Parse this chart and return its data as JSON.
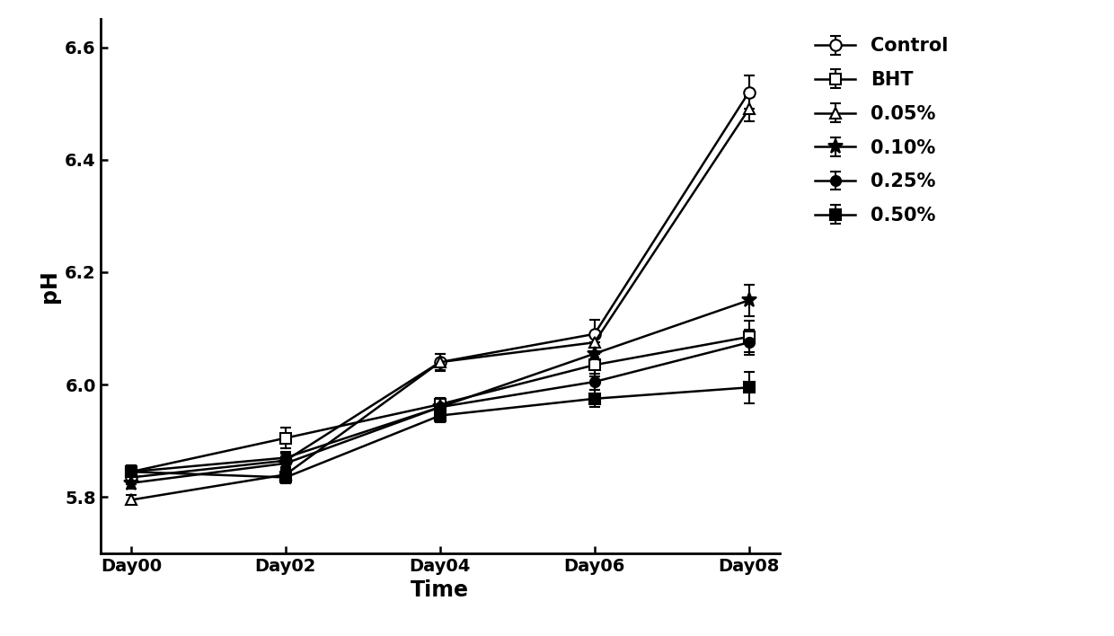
{
  "x_labels": [
    "Day00",
    "Day02",
    "Day04",
    "Day06",
    "Day08"
  ],
  "x_values": [
    0,
    2,
    4,
    6,
    8
  ],
  "series": [
    {
      "label": "Control",
      "y": [
        5.835,
        5.865,
        6.04,
        6.09,
        6.52
      ],
      "yerr": [
        0.012,
        0.012,
        0.015,
        0.025,
        0.03
      ],
      "marker": "o",
      "markerfacecolor": "white",
      "markeredgecolor": "black",
      "linestyle": "-",
      "color": "black",
      "markersize": 9
    },
    {
      "label": "BHT",
      "y": [
        5.845,
        5.905,
        5.965,
        6.035,
        6.085
      ],
      "yerr": [
        0.012,
        0.018,
        0.012,
        0.02,
        0.028
      ],
      "marker": "s",
      "markerfacecolor": "white",
      "markeredgecolor": "black",
      "linestyle": "-",
      "color": "black",
      "markersize": 8
    },
    {
      "label": "0.05%",
      "y": [
        5.795,
        5.84,
        6.04,
        6.075,
        6.49
      ],
      "yerr": [
        0.008,
        0.01,
        0.014,
        0.015,
        0.022
      ],
      "marker": "^",
      "markerfacecolor": "white",
      "markeredgecolor": "black",
      "linestyle": "-",
      "color": "black",
      "markersize": 9
    },
    {
      "label": "0.10%",
      "y": [
        5.825,
        5.86,
        5.96,
        6.055,
        6.15
      ],
      "yerr": [
        0.01,
        0.012,
        0.012,
        0.02,
        0.028
      ],
      "marker": "*",
      "markerfacecolor": "black",
      "markeredgecolor": "black",
      "linestyle": "-",
      "color": "black",
      "markersize": 12
    },
    {
      "label": "0.25%",
      "y": [
        5.845,
        5.87,
        5.96,
        6.005,
        6.075
      ],
      "yerr": [
        0.01,
        0.01,
        0.012,
        0.015,
        0.022
      ],
      "marker": "o",
      "markerfacecolor": "black",
      "markeredgecolor": "black",
      "linestyle": "-",
      "color": "black",
      "markersize": 8
    },
    {
      "label": "0.50%",
      "y": [
        5.845,
        5.835,
        5.945,
        5.975,
        5.995
      ],
      "yerr": [
        0.01,
        0.01,
        0.012,
        0.015,
        0.028
      ],
      "marker": "s",
      "markerfacecolor": "black",
      "markeredgecolor": "black",
      "linestyle": "-",
      "color": "black",
      "markersize": 8
    }
  ],
  "xlabel": "Time",
  "ylabel": "pH",
  "ylim": [
    5.7,
    6.65
  ],
  "yticks": [
    5.8,
    6.0,
    6.2,
    6.4,
    6.6
  ],
  "legend_fontsize": 15,
  "axis_label_fontsize": 17,
  "tick_fontsize": 14,
  "linewidth": 1.8,
  "capsize": 4,
  "figsize": [
    12.4,
    7.08
  ],
  "dpi": 100
}
